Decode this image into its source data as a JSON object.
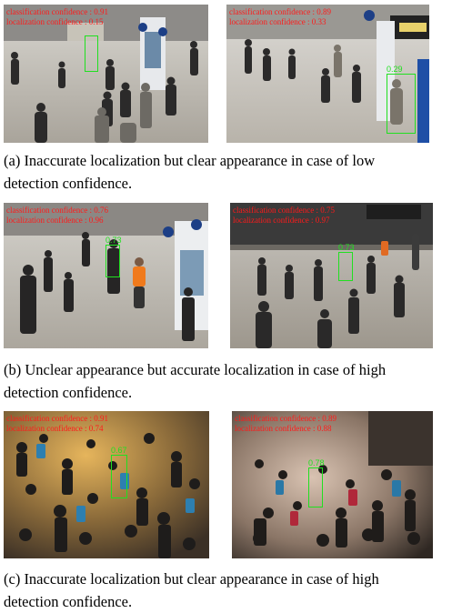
{
  "figures": [
    {
      "id": "a",
      "caption": [
        "(a) Inaccurate localization but clear appearance in case of low",
        "detection confidence."
      ],
      "panels": [
        {
          "classification": "classification confidence : 0.91",
          "localization": "localization confidence : 0.15",
          "box_label": ""
        },
        {
          "classification": "classification confidence : 0.89",
          "localization": "localization confidence : 0.33",
          "box_label": "0.29"
        }
      ]
    },
    {
      "id": "b",
      "caption": [
        "(b) Unclear appearance but accurate localization in case of high",
        "detection confidence."
      ],
      "panels": [
        {
          "classification": "classification confidence : 0.76",
          "localization": "localization confidence : 0.96",
          "box_label": "0.73"
        },
        {
          "classification": "classification confidence : 0.75",
          "localization": "localization confidence : 0.97",
          "box_label": "0.73"
        }
      ]
    },
    {
      "id": "c",
      "caption": [
        "(c) Inaccurate localization but clear appearance in case of high",
        "detection confidence."
      ],
      "panels": [
        {
          "classification": "classification confidence : 0.91",
          "localization": "localization confidence : 0.74",
          "box_label": "0.67"
        },
        {
          "classification": "classification confidence : 0.89",
          "localization": "localization confidence : 0.88",
          "box_label": "0.78"
        }
      ]
    }
  ]
}
